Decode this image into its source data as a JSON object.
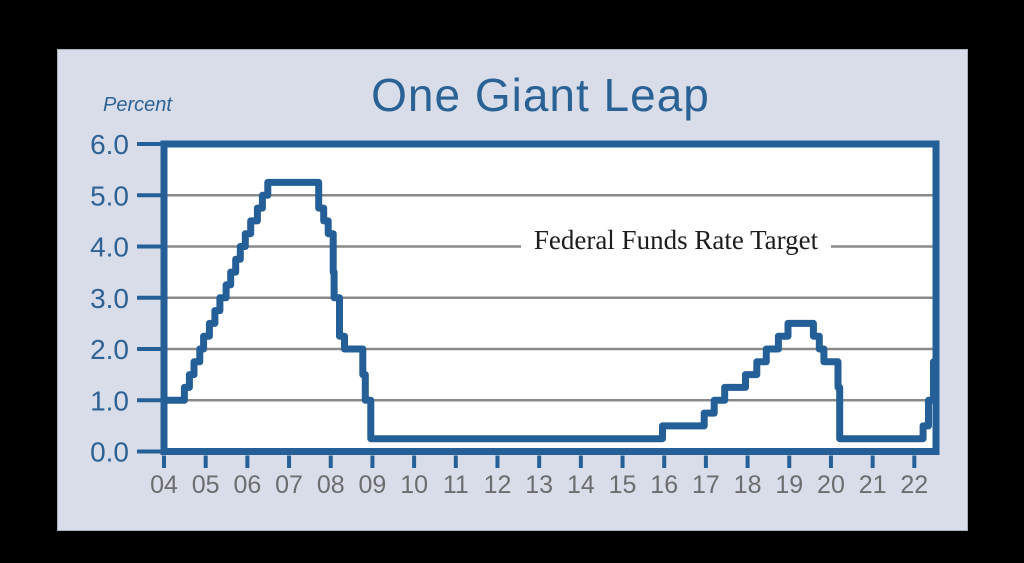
{
  "page": {
    "background": "#000000"
  },
  "panel": {
    "background": "#d8dde9",
    "title": "One Giant Leap",
    "title_color": "#2a6295",
    "unit_label": "Percent"
  },
  "chart_data": {
    "type": "line",
    "subtype": "step-after",
    "title": "One Giant Leap",
    "ylabel": "Percent",
    "xlabel": "",
    "annotation": "Federal Funds Rate Target",
    "legend_position": "inline annotation on 4.0 gridline",
    "grid": "horizontal gridlines at 1.0 through 5.0, solid gray",
    "xlim": [
      2004.0,
      2022.52
    ],
    "ylim": [
      0.0,
      6.0
    ],
    "y_ticks": [
      0,
      1,
      2,
      3,
      4,
      5,
      6
    ],
    "y_tick_labels": [
      "0.0",
      "1.0",
      "2.0",
      "3.0",
      "4.0",
      "5.0",
      "6.0"
    ],
    "x_ticks": [
      2004,
      2005,
      2006,
      2007,
      2008,
      2009,
      2010,
      2011,
      2012,
      2013,
      2014,
      2015,
      2016,
      2017,
      2018,
      2019,
      2020,
      2021,
      2022
    ],
    "x_tick_labels": [
      "04",
      "05",
      "06",
      "07",
      "08",
      "09",
      "10",
      "11",
      "12",
      "13",
      "14",
      "15",
      "16",
      "17",
      "18",
      "19",
      "20",
      "21",
      "22"
    ],
    "colors": {
      "line": "#245f97",
      "frame": "#245f97",
      "grid": "#8a8a8a",
      "y_tick_label": "#2e6294",
      "x_tick_label": "#6d6d70",
      "annotation_text": "#1d1d1f",
      "plot_background": "#ffffff"
    },
    "series": [
      {
        "name": "Federal Funds Rate Target",
        "color": "#245f97",
        "step_points": [
          [
            2004.0,
            1.0
          ],
          [
            2004.49,
            1.25
          ],
          [
            2004.61,
            1.5
          ],
          [
            2004.72,
            1.75
          ],
          [
            2004.86,
            2.0
          ],
          [
            2004.95,
            2.25
          ],
          [
            2005.09,
            2.5
          ],
          [
            2005.22,
            2.75
          ],
          [
            2005.34,
            3.0
          ],
          [
            2005.49,
            3.25
          ],
          [
            2005.6,
            3.5
          ],
          [
            2005.72,
            3.75
          ],
          [
            2005.83,
            4.0
          ],
          [
            2005.95,
            4.25
          ],
          [
            2006.08,
            4.5
          ],
          [
            2006.24,
            4.75
          ],
          [
            2006.36,
            5.0
          ],
          [
            2006.49,
            5.25
          ],
          [
            2007.71,
            4.75
          ],
          [
            2007.83,
            4.5
          ],
          [
            2007.94,
            4.25
          ],
          [
            2008.06,
            3.5
          ],
          [
            2008.08,
            3.0
          ],
          [
            2008.21,
            2.25
          ],
          [
            2008.33,
            2.0
          ],
          [
            2008.77,
            1.5
          ],
          [
            2008.83,
            1.0
          ],
          [
            2008.96,
            0.25
          ],
          [
            2015.96,
            0.5
          ],
          [
            2016.96,
            0.75
          ],
          [
            2017.2,
            1.0
          ],
          [
            2017.45,
            1.25
          ],
          [
            2017.95,
            1.5
          ],
          [
            2018.22,
            1.75
          ],
          [
            2018.45,
            2.0
          ],
          [
            2018.74,
            2.25
          ],
          [
            2018.97,
            2.5
          ],
          [
            2019.58,
            2.25
          ],
          [
            2019.72,
            2.0
          ],
          [
            2019.83,
            1.75
          ],
          [
            2020.17,
            1.25
          ],
          [
            2020.21,
            0.25
          ],
          [
            2022.21,
            0.5
          ],
          [
            2022.34,
            1.0
          ],
          [
            2022.46,
            1.75
          ]
        ]
      }
    ]
  }
}
